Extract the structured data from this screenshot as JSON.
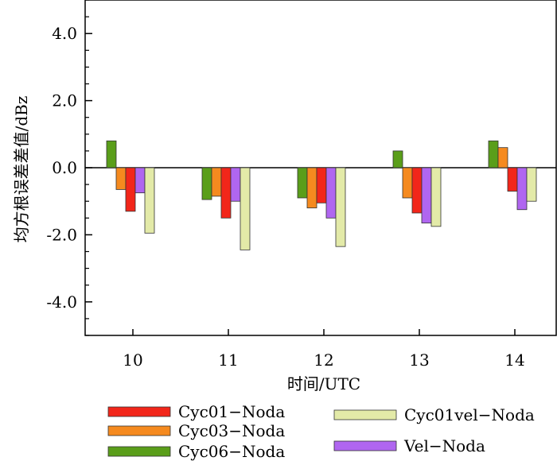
{
  "chart_data": {
    "type": "bar",
    "xlabel": "时间/UTC",
    "ylabel": "均方根误差差值/dBz",
    "ylim": [
      -5.0,
      5.0
    ],
    "yticks": [
      "-4.0",
      "-2.0",
      "0.0",
      "2.0",
      "4.0"
    ],
    "ytick_values": [
      -4,
      -2,
      0,
      2,
      4
    ],
    "categories": [
      "10",
      "11",
      "12",
      "13",
      "14"
    ],
    "grid": false,
    "legend_position": "bottom",
    "series": [
      {
        "name": "Cyc06−Noda",
        "color": "#5a9e1a",
        "values": [
          0.8,
          -0.95,
          -0.9,
          0.5,
          0.8
        ]
      },
      {
        "name": "Cyc03−Noda",
        "color": "#f58a1f",
        "values": [
          -0.65,
          -0.85,
          -1.2,
          -0.9,
          0.6
        ]
      },
      {
        "name": "Cyc01−Noda",
        "color": "#f2261a",
        "values": [
          -1.3,
          -1.5,
          -1.05,
          -1.35,
          -0.7
        ]
      },
      {
        "name": "Vel−Noda",
        "color": "#b066f0",
        "values": [
          -0.75,
          -1.0,
          -1.5,
          -1.65,
          -1.25
        ]
      },
      {
        "name": "Cyc01vel−Noda",
        "color": "#e3eaa8",
        "values": [
          -1.95,
          -2.45,
          -2.35,
          -1.75,
          -1.0
        ]
      }
    ]
  }
}
